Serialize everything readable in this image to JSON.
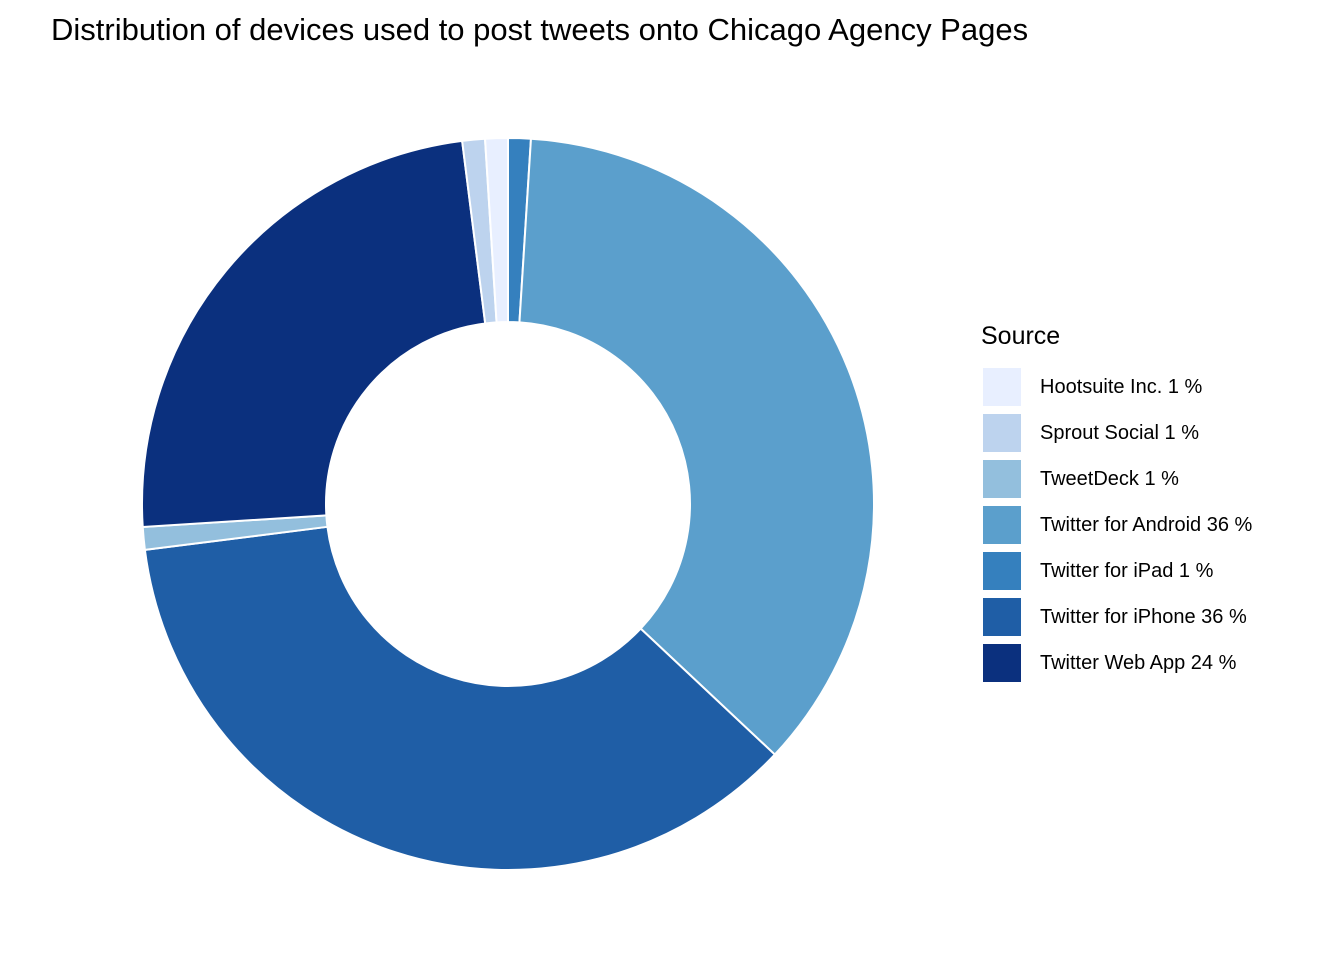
{
  "chart_data": {
    "type": "pie",
    "title": "Distribution of devices used to post tweets onto Chicago Agency Pages",
    "legend_title": "Source",
    "legend_position": "right",
    "donut": true,
    "slices": [
      {
        "label": "Hootsuite Inc. 1 %",
        "name": "Hootsuite Inc.",
        "value": 1,
        "color": "#e8efff"
      },
      {
        "label": "Sprout Social 1 %",
        "name": "Sprout Social",
        "value": 1,
        "color": "#bdd3ee"
      },
      {
        "label": "TweetDeck 1 %",
        "name": "TweetDeck",
        "value": 1,
        "color": "#93bfdd"
      },
      {
        "label": "Twitter for Android 36 %",
        "name": "Twitter for Android",
        "value": 36,
        "color": "#5b9fcc"
      },
      {
        "label": "Twitter for iPad 1 %",
        "name": "Twitter for iPad",
        "value": 1,
        "color": "#3580be"
      },
      {
        "label": "Twitter for iPhone 36 %",
        "name": "Twitter for iPhone",
        "value": 36,
        "color": "#1f5ea6"
      },
      {
        "label": "Twitter Web App 24 %",
        "name": "Twitter Web App",
        "value": 24,
        "color": "#0b307e"
      }
    ],
    "draw_order": [
      "Twitter for iPad",
      "Twitter for Android",
      "Twitter for iPhone",
      "TweetDeck",
      "Twitter Web App",
      "Sprout Social",
      "Hootsuite Inc."
    ]
  }
}
